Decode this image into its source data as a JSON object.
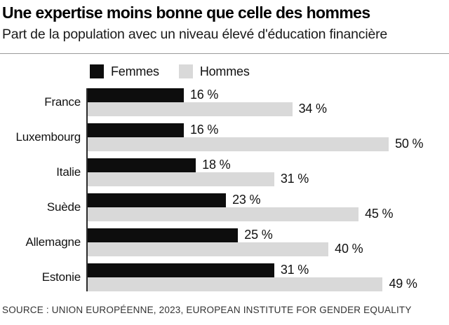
{
  "header": {
    "title": "Une expertise moins bonne que celle des hommes",
    "subtitle": "Part de la population avec un niveau élevé d'éducation financière"
  },
  "legend": [
    {
      "label": "Femmes",
      "color": "#0d0d0d"
    },
    {
      "label": "Hommes",
      "color": "#d9d9d9"
    }
  ],
  "chart_data": {
    "type": "bar",
    "orientation": "horizontal",
    "title": "Une expertise moins bonne que celle des hommes",
    "subtitle": "Part de la population avec un niveau élevé d'éducation financière",
    "categories": [
      "France",
      "Luxembourg",
      "Italie",
      "Suède",
      "Allemagne",
      "Estonie"
    ],
    "series": [
      {
        "name": "Femmes",
        "color": "#0d0d0d",
        "values": [
          16,
          16,
          18,
          23,
          25,
          31
        ],
        "labels": [
          "16 %",
          "16 %",
          "18 %",
          "23 %",
          "25 %",
          "31 %"
        ]
      },
      {
        "name": "Hommes",
        "color": "#d9d9d9",
        "values": [
          34,
          50,
          31,
          45,
          40,
          49
        ],
        "labels": [
          "34 %",
          "50 %",
          "31 %",
          "45 %",
          "40 %",
          "49 %"
        ]
      }
    ],
    "xlabel": "",
    "ylabel": "",
    "xlim": [
      0,
      60
    ],
    "grid": false,
    "legend_position": "top",
    "value_suffix": " %"
  },
  "footer": {
    "source": "SOURCE : UNION EUROPÉENNE, 2023, EUROPEAN INSTITUTE FOR GENDER EQUALITY"
  }
}
